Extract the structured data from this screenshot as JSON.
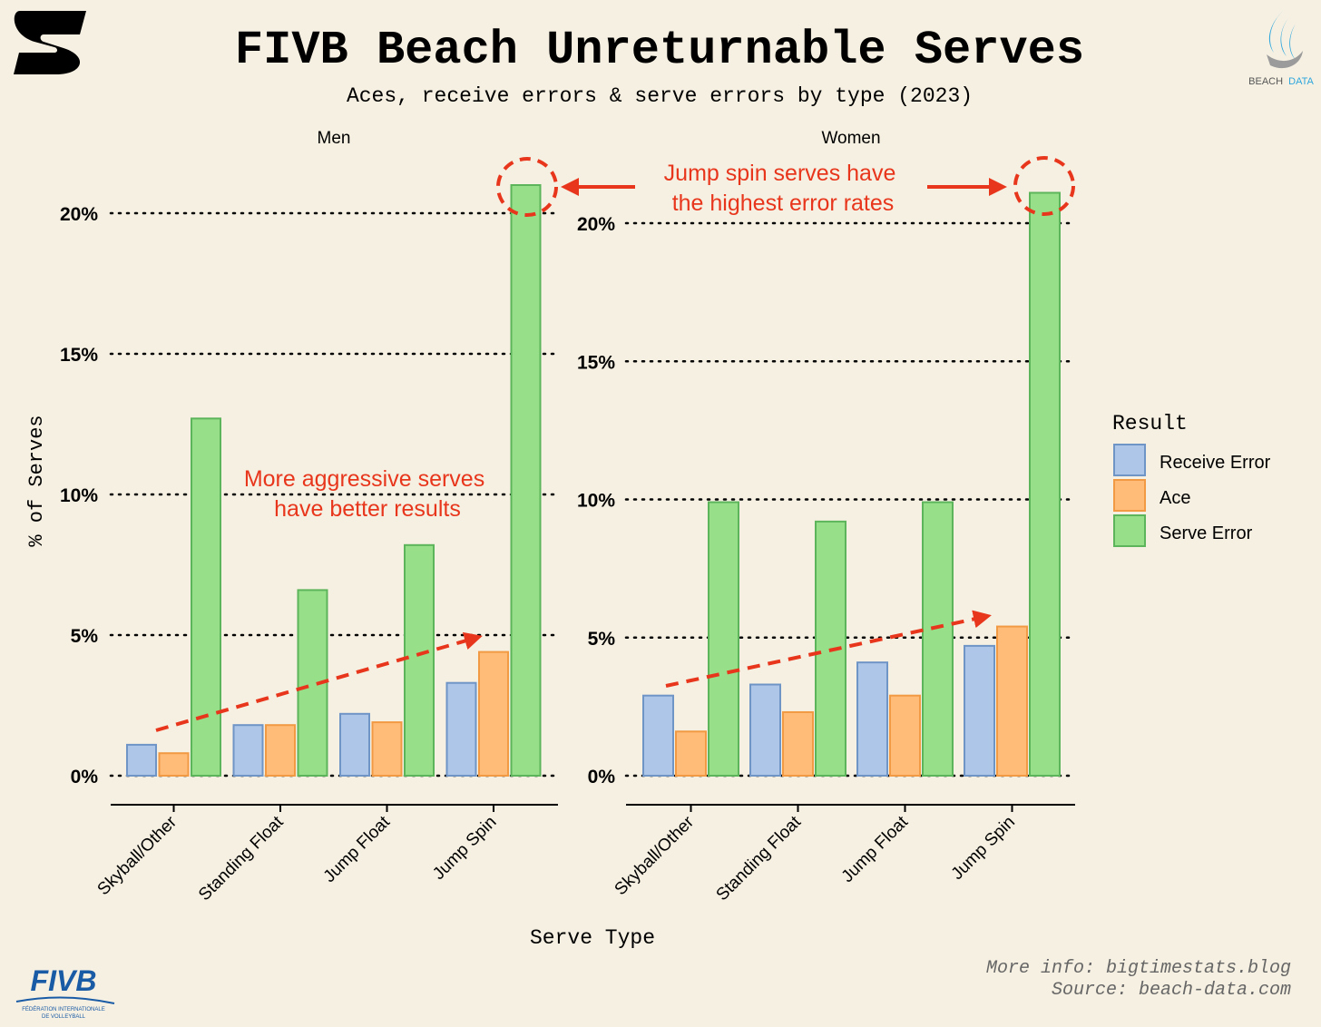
{
  "header": {
    "title": "FIVB Beach Unreturnable Serves",
    "subtitle": "Aces, receive errors & serve errors by type (2023)",
    "left_logo_icon": "bigtimestats-logo",
    "right_logo_icon": "beach-data-logo",
    "right_logo_text_a": "BEACH",
    "right_logo_text_b": "DATA"
  },
  "footer": {
    "more_info": "More info: bigtimestats.blog",
    "source": "Source: beach-data.com",
    "fivb_logo_text": "FIVB",
    "fivb_logo_line1": "FÉDÉRATION INTERNATIONALE",
    "fivb_logo_line2": "DE VOLLEYBALL"
  },
  "annotations": {
    "aggressive_line1": "More aggressive serves",
    "aggressive_line2": "have better results",
    "jumpspin_line1": "Jump spin serves have",
    "jumpspin_line2": "the highest error rates"
  },
  "colors": {
    "background": "#F6F0E2",
    "annotation": "#E8361C",
    "receive_error_fill": "#AEC7E8",
    "receive_error_stroke": "#6F94C6",
    "ace_fill": "#FFBB78",
    "ace_stroke": "#F19A43",
    "serve_error_fill": "#98DF8A",
    "serve_error_stroke": "#5CB55B"
  },
  "chart_data": {
    "type": "bar",
    "ylabel": "% of Serves",
    "xlabel": "Serve Type",
    "ylim": [
      0,
      21.8
    ],
    "yticks": [
      0,
      5,
      10,
      15,
      20
    ],
    "ytick_labels": [
      "0%",
      "5%",
      "10%",
      "15%",
      "20%"
    ],
    "grid": "horizontal dotted",
    "legend_title": "Result",
    "legend_position": "right",
    "series_names": [
      "Receive Error",
      "Ace",
      "Serve Error"
    ],
    "categories": [
      "Skyball/Other",
      "Standing Float",
      "Jump Float",
      "Jump Spin"
    ],
    "panels": [
      {
        "title": "Men",
        "series": [
          {
            "name": "Receive Error",
            "values": [
              1.1,
              1.8,
              2.2,
              3.3
            ]
          },
          {
            "name": "Ace",
            "values": [
              0.8,
              1.8,
              1.9,
              4.4
            ]
          },
          {
            "name": "Serve Error",
            "values": [
              12.7,
              6.6,
              8.2,
              21.0
            ]
          }
        ]
      },
      {
        "title": "Women",
        "series": [
          {
            "name": "Receive Error",
            "values": [
              2.9,
              3.3,
              4.1,
              4.7
            ]
          },
          {
            "name": "Ace",
            "values": [
              1.6,
              2.3,
              2.9,
              5.4
            ]
          },
          {
            "name": "Serve Error",
            "values": [
              9.9,
              9.2,
              9.9,
              21.1
            ]
          }
        ]
      }
    ]
  }
}
